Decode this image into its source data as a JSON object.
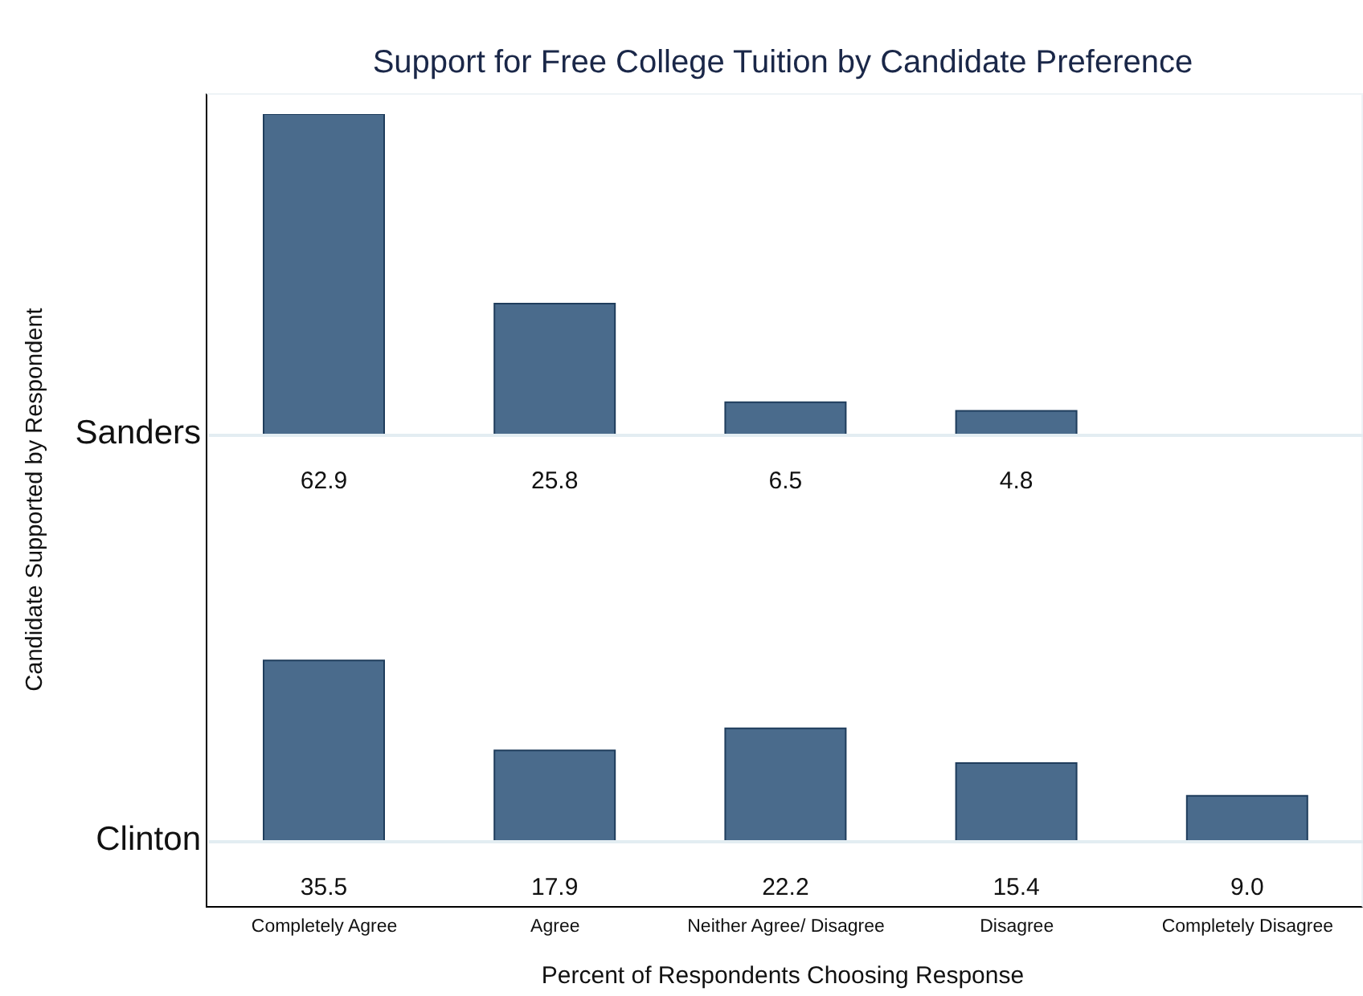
{
  "chart_data": [
    {
      "type": "bar",
      "title": "Support for Free College Tuition by Candidate Preference",
      "annotations": [
        "Candidate Supported by Respondent"
      ],
      "categories": [
        null,
        null,
        null,
        null
      ],
      "series": [
        {
          "name": "Sanders",
          "color": "#4a6b8c",
          "values": [
            62.9,
            25.8,
            6.5,
            4.8
          ],
          "value_labels": [
            "62.9",
            "25.8",
            "6.5",
            "4.8"
          ]
        }
      ]
    },
    {
      "type": "bar",
      "xlabel": "Percent of Respondents Choosing Response",
      "tick_labels": "x",
      "categories": [
        "Completely Agree",
        "Agree",
        "Neither Agree/ Disagree",
        "Disagree",
        "Completely Disagree"
      ],
      "series": [
        {
          "name": "Clinton",
          "color": "#4a6b8c",
          "values": [
            35.5,
            17.9,
            22.2,
            15.4,
            9.0
          ],
          "value_labels": [
            "35.5",
            "17.9",
            "22.2",
            "15.4",
            "9.0"
          ]
        }
      ]
    }
  ]
}
